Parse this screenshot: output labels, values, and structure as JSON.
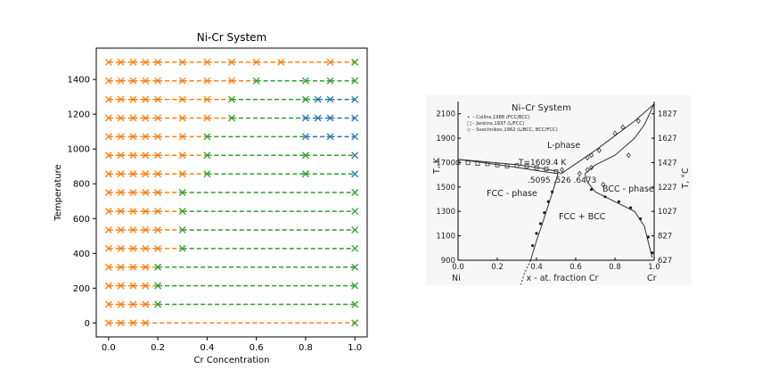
{
  "colors": {
    "fcc": "#ff7f0e",
    "bcc": "#1f77b4",
    "mixed": "#2ca02c",
    "background": "#ffffff"
  },
  "chart_data": [
    {
      "type": "scatter",
      "title": "Ni-Cr System",
      "xlabel": "Cr Concentration",
      "ylabel": "Temperature",
      "xlim": [
        -0.05,
        1.05
      ],
      "ylim": [
        -80,
        1580
      ],
      "x_ticks": [
        0.0,
        0.2,
        0.4,
        0.6,
        0.8,
        1.0
      ],
      "x_tick_labels": [
        "0.0",
        "0.2",
        "0.4",
        "0.6",
        "0.8",
        "1.0"
      ],
      "y_ticks": [
        0,
        200,
        400,
        600,
        800,
        1000,
        1200,
        1400
      ],
      "y_tick_labels": [
        "0",
        "200",
        "400",
        "600",
        "800",
        "1000",
        "1200",
        "1400"
      ],
      "grid": false,
      "legend": "none",
      "marker": "x",
      "line_style": "dashed",
      "segment_color_rule": "each dashed segment takes the colour of the marker at its left end",
      "series_key": "point phases: fcc = orange, mixed = green, bcc = blue",
      "rows": [
        {
          "T": 0,
          "fcc": [
            0.0,
            0.05,
            0.1,
            0.15
          ],
          "mixed": [
            1.0
          ],
          "bcc": []
        },
        {
          "T": 107,
          "fcc": [
            0.0,
            0.05,
            0.1,
            0.15
          ],
          "mixed": [
            0.2,
            1.0
          ],
          "bcc": []
        },
        {
          "T": 214,
          "fcc": [
            0.0,
            0.05,
            0.1,
            0.15
          ],
          "mixed": [
            0.2,
            1.0
          ],
          "bcc": []
        },
        {
          "T": 321,
          "fcc": [
            0.0,
            0.05,
            0.1,
            0.15
          ],
          "mixed": [
            0.2,
            1.0
          ],
          "bcc": []
        },
        {
          "T": 428,
          "fcc": [
            0.0,
            0.05,
            0.1,
            0.15,
            0.2
          ],
          "mixed": [
            0.3,
            1.0
          ],
          "bcc": []
        },
        {
          "T": 535,
          "fcc": [
            0.0,
            0.05,
            0.1,
            0.15,
            0.2
          ],
          "mixed": [
            0.3,
            1.0
          ],
          "bcc": []
        },
        {
          "T": 642,
          "fcc": [
            0.0,
            0.05,
            0.1,
            0.15,
            0.2
          ],
          "mixed": [
            0.3,
            1.0
          ],
          "bcc": []
        },
        {
          "T": 750,
          "fcc": [
            0.0,
            0.05,
            0.1,
            0.15,
            0.2
          ],
          "mixed": [
            0.3,
            1.0
          ],
          "bcc": []
        },
        {
          "T": 857,
          "fcc": [
            0.0,
            0.05,
            0.1,
            0.15,
            0.2,
            0.3
          ],
          "mixed": [
            0.4,
            0.8
          ],
          "bcc": [
            1.0
          ]
        },
        {
          "T": 964,
          "fcc": [
            0.0,
            0.05,
            0.1,
            0.15,
            0.2,
            0.3
          ],
          "mixed": [
            0.4,
            0.8
          ],
          "bcc": [
            1.0
          ]
        },
        {
          "T": 1071,
          "fcc": [
            0.0,
            0.05,
            0.1,
            0.15,
            0.2,
            0.3
          ],
          "mixed": [
            0.4
          ],
          "bcc": [
            0.8,
            0.9,
            1.0
          ]
        },
        {
          "T": 1178,
          "fcc": [
            0.0,
            0.05,
            0.1,
            0.15,
            0.2,
            0.3,
            0.4
          ],
          "mixed": [
            0.5
          ],
          "bcc": [
            0.8,
            0.85,
            0.9,
            1.0
          ]
        },
        {
          "T": 1285,
          "fcc": [
            0.0,
            0.05,
            0.1,
            0.15,
            0.2,
            0.3,
            0.4
          ],
          "mixed": [
            0.5,
            0.8
          ],
          "bcc": [
            0.85,
            0.9,
            1.0
          ]
        },
        {
          "T": 1392,
          "fcc": [
            0.0,
            0.05,
            0.1,
            0.15,
            0.2,
            0.3,
            0.4,
            0.5
          ],
          "mixed": [
            0.6,
            0.8,
            0.9,
            1.0
          ],
          "bcc": []
        },
        {
          "T": 1499,
          "fcc": [
            0.0,
            0.05,
            0.1,
            0.15,
            0.2,
            0.3,
            0.4,
            0.5,
            0.6,
            0.7,
            0.9,
            1.0
          ],
          "mixed": [
            1.0
          ],
          "bcc": []
        }
      ]
    },
    {
      "type": "line",
      "title": "Ni–Cr  System",
      "xlabel": "x - at. fraction Cr",
      "ylabel_left": "T, K",
      "ylabel_right": "T, °C",
      "x_left_label": "Ni",
      "x_right_label": "Cr",
      "xlim": [
        0,
        1
      ],
      "ylim": [
        900,
        2200
      ],
      "x_ticks": [
        0.0,
        0.2,
        0.4,
        0.6,
        0.8,
        1.0
      ],
      "x_tick_labels": [
        "0.0",
        "0.2",
        "0.4",
        "0.6",
        "0.8",
        "1.0"
      ],
      "y_ticks_left": [
        900,
        1100,
        1300,
        1500,
        1700,
        1900,
        2100
      ],
      "y_tick_labels_left": [
        "900",
        "1100",
        "1300",
        "1500",
        "1700",
        "1900",
        "2100"
      ],
      "y_ticks_right_K": [
        900,
        1100,
        1300,
        1500,
        1700,
        1900,
        2100
      ],
      "y_tick_labels_right": [
        "627",
        "827",
        "1027",
        "1227",
        "1427",
        "1627",
        "1827"
      ],
      "legend": [
        {
          "symbol": "•",
          "text": "– Collins,1988 (FCC/BCC)"
        },
        {
          "symbol": "□",
          "text": "– Jenkins,1937 (L/FCC)"
        },
        {
          "symbol": "◇",
          "text": "– Svechnikov,1962 (L/BCC, BCC/FCC)"
        }
      ],
      "annotations": {
        "liquid": "L-phase",
        "eutectic_T": "T=1609.4  K",
        "compositions": ".5095  .526  .6473",
        "fcc": "FCC - phase",
        "bcc": "BCC - phase",
        "two_phase": "FCC + BCC"
      },
      "eutectic": {
        "T": 1609.4,
        "x_fcc": 0.5095,
        "x_liquid": 0.526,
        "x_bcc": 0.6473
      },
      "series": [
        {
          "role": "fcc-liquidus",
          "x": [
            0.0,
            0.1,
            0.2,
            0.3,
            0.4,
            0.5,
            0.526
          ],
          "y": [
            1726,
            1713,
            1698,
            1682,
            1661,
            1630,
            1609.4
          ]
        },
        {
          "role": "fcc-solidus",
          "x": [
            0.0,
            0.1,
            0.2,
            0.3,
            0.4,
            0.5095
          ],
          "y": [
            1726,
            1706,
            1683,
            1660,
            1635,
            1609.4
          ]
        },
        {
          "role": "bcc-liquidus",
          "x": [
            0.526,
            0.6,
            0.7,
            0.8,
            0.9,
            1.0
          ],
          "y": [
            1609.4,
            1690,
            1800,
            1920,
            2040,
            2180
          ]
        },
        {
          "role": "bcc-solidus",
          "x": [
            0.6473,
            0.7,
            0.8,
            0.9,
            0.95,
            1.0
          ],
          "y": [
            1609.4,
            1680,
            1760,
            1900,
            2010,
            2180
          ]
        },
        {
          "role": "fcc-solvus",
          "x": [
            0.5095,
            0.49,
            0.46,
            0.43,
            0.4,
            0.37
          ],
          "y": [
            1609.4,
            1500,
            1350,
            1200,
            1060,
            900
          ]
        },
        {
          "role": "fcc-solvus-extension-dashed",
          "x": [
            0.37,
            0.34,
            0.32
          ],
          "y": [
            900,
            800,
            700
          ]
        },
        {
          "role": "bcc-solvus",
          "x": [
            0.6473,
            0.66,
            0.7,
            0.8,
            0.9,
            0.95,
            0.99
          ],
          "y": [
            1609.4,
            1540,
            1460,
            1380,
            1300,
            1180,
            920
          ]
        },
        {
          "role": "collins-points-fcc",
          "marker": "dot",
          "x": [
            0.38,
            0.4,
            0.42,
            0.44,
            0.46,
            0.48
          ],
          "y": [
            1020,
            1120,
            1200,
            1290,
            1380,
            1460
          ]
        },
        {
          "role": "collins-points-bcc",
          "marker": "dot",
          "x": [
            0.68,
            0.75,
            0.82,
            0.88,
            0.93,
            0.97,
            0.99
          ],
          "y": [
            1480,
            1420,
            1380,
            1330,
            1240,
            1090,
            960
          ]
        },
        {
          "role": "jenkins-points",
          "marker": "square",
          "x": [
            0.0,
            0.05,
            0.1,
            0.15,
            0.2,
            0.25,
            0.3,
            0.35,
            0.4,
            0.45,
            0.5
          ],
          "y": [
            1700,
            1698,
            1692,
            1689,
            1680,
            1672,
            1676,
            1670,
            1660,
            1648,
            1628
          ]
        },
        {
          "role": "svechnikov-points",
          "marker": "diamond",
          "x": [
            0.53,
            0.62,
            0.66,
            0.68,
            0.72,
            0.8,
            0.84,
            0.87,
            0.92,
            0.74,
            0.66,
            0.68
          ],
          "y": [
            1640,
            1610,
            1740,
            1760,
            1800,
            1940,
            1990,
            1760,
            2040,
            1520,
            1640,
            1660
          ]
        }
      ]
    }
  ]
}
